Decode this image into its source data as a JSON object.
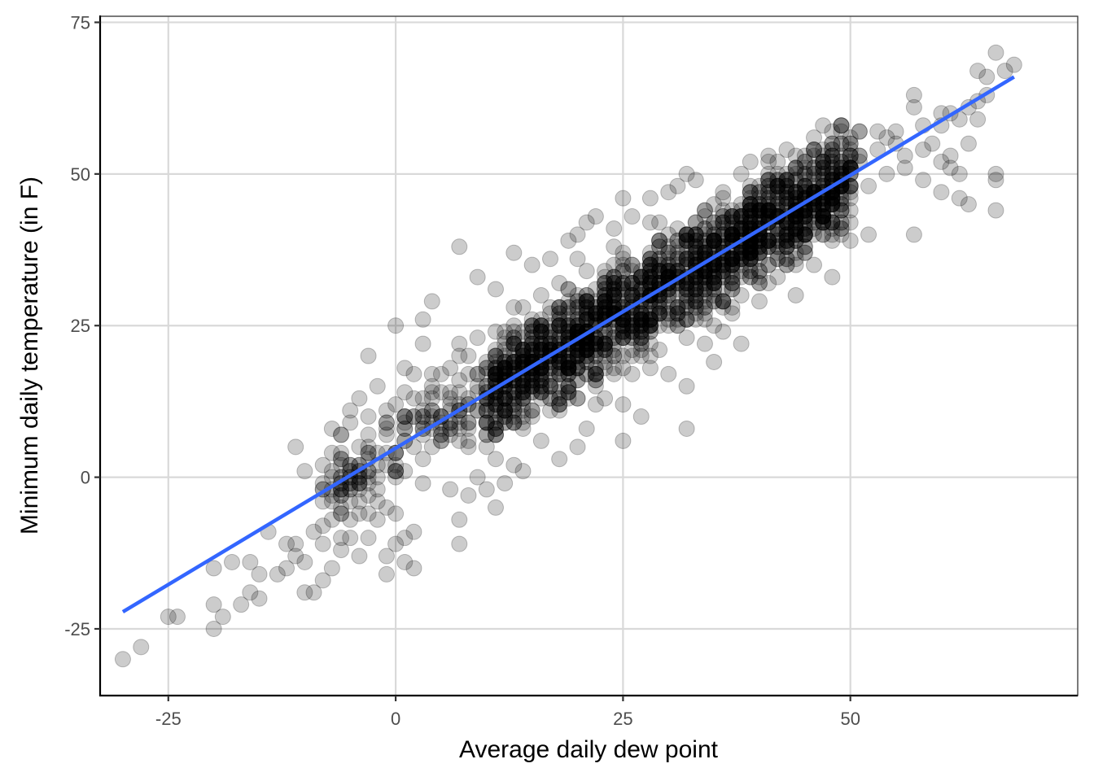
{
  "chart_data": {
    "type": "scatter",
    "title": "",
    "xlabel": "Average daily dew point",
    "ylabel": "Minimum daily temperature (in F)",
    "xlim": [
      -32.5,
      75
    ],
    "ylim": [
      -36,
      76
    ],
    "x_ticks": [
      -25,
      0,
      25,
      50
    ],
    "x_tick_labels": [
      "-25",
      "0",
      "25",
      "50"
    ],
    "y_ticks": [
      -25,
      0,
      25,
      50,
      75
    ],
    "y_tick_labels": [
      "-25",
      "0",
      "25",
      "50",
      "75"
    ],
    "grid": true,
    "legend": "none",
    "point_style": {
      "color": "#000000",
      "alpha": 0.2,
      "radius": 9.5
    },
    "trend_line": {
      "type": "linear regression",
      "color": "#3366FF",
      "x": [
        -30,
        68
      ],
      "y": [
        -22.2,
        66.0
      ],
      "slope": 0.9,
      "intercept": 4.8
    },
    "bulk_distribution": {
      "description": "dense cluster of integer-valued observations along the trend line",
      "x_range": [
        -8,
        66
      ],
      "residual_sd": 5,
      "density_peak_x": [
        20,
        40
      ]
    },
    "points": [
      [
        -30,
        -30
      ],
      [
        -28,
        -28
      ],
      [
        -25,
        -23
      ],
      [
        -24,
        -23
      ],
      [
        -20,
        -21
      ],
      [
        -20,
        -25
      ],
      [
        -19,
        -23
      ],
      [
        -20,
        -15
      ],
      [
        -18,
        -14
      ],
      [
        -17,
        -21
      ],
      [
        -16,
        -19
      ],
      [
        -16,
        -14
      ],
      [
        -15,
        -20
      ],
      [
        -15,
        -16
      ],
      [
        -14,
        -9
      ],
      [
        -13,
        -16
      ],
      [
        -12,
        -15
      ],
      [
        -12,
        -11
      ],
      [
        -11,
        -11
      ],
      [
        -11,
        -13
      ],
      [
        -11,
        5
      ],
      [
        -10,
        -14
      ],
      [
        -10,
        -19
      ],
      [
        -9,
        -19
      ],
      [
        -10,
        1
      ],
      [
        -9,
        -9
      ],
      [
        -8,
        -17
      ],
      [
        -8,
        -11
      ],
      [
        -7,
        -15
      ],
      [
        -6,
        -6
      ],
      [
        -6,
        -10
      ],
      [
        -6,
        -12
      ],
      [
        -5,
        -10
      ],
      [
        -4,
        -13
      ],
      [
        -5,
        9
      ],
      [
        -4,
        -2
      ],
      [
        -3,
        -3
      ],
      [
        -3,
        -10
      ],
      [
        -2,
        -2
      ],
      [
        -2,
        -7
      ],
      [
        -1,
        -13
      ],
      [
        -1,
        -16
      ],
      [
        0,
        -11
      ],
      [
        0,
        -6
      ],
      [
        1,
        -10
      ],
      [
        1,
        -14
      ],
      [
        2,
        -9
      ],
      [
        2,
        -15
      ],
      [
        -7,
        4
      ],
      [
        -6,
        3
      ],
      [
        -4,
        13
      ],
      [
        -3,
        20
      ],
      [
        -2,
        15
      ],
      [
        -1,
        9
      ],
      [
        0,
        25
      ],
      [
        1,
        18
      ],
      [
        1,
        14
      ],
      [
        2,
        10
      ],
      [
        3,
        22
      ],
      [
        3,
        26
      ],
      [
        4,
        29
      ],
      [
        5,
        17
      ],
      [
        6,
        -2
      ],
      [
        7,
        -7
      ],
      [
        7,
        -11
      ],
      [
        8,
        -3
      ],
      [
        9,
        0
      ],
      [
        10,
        -2
      ],
      [
        11,
        -5
      ],
      [
        12,
        -1
      ],
      [
        13,
        2
      ],
      [
        14,
        1
      ],
      [
        7,
        38
      ],
      [
        9,
        33
      ],
      [
        11,
        31
      ],
      [
        13,
        37
      ],
      [
        15,
        35
      ],
      [
        17,
        36
      ],
      [
        19,
        39
      ],
      [
        20,
        40
      ],
      [
        21,
        42
      ],
      [
        22,
        43
      ],
      [
        24,
        41
      ],
      [
        25,
        46
      ],
      [
        26,
        43
      ],
      [
        28,
        46
      ],
      [
        30,
        47
      ],
      [
        31,
        48
      ],
      [
        32,
        50
      ],
      [
        33,
        49
      ],
      [
        34,
        44
      ],
      [
        36,
        47
      ],
      [
        38,
        50
      ],
      [
        39,
        52
      ],
      [
        41,
        53
      ],
      [
        42,
        52
      ],
      [
        44,
        53
      ],
      [
        46,
        56
      ],
      [
        47,
        58
      ],
      [
        49,
        58
      ],
      [
        51,
        57
      ],
      [
        53,
        57
      ],
      [
        55,
        57
      ],
      [
        57,
        63
      ],
      [
        57,
        61
      ],
      [
        58,
        58
      ],
      [
        60,
        58
      ],
      [
        61,
        60
      ],
      [
        63,
        61
      ],
      [
        64,
        67
      ],
      [
        65,
        66
      ],
      [
        66,
        70
      ],
      [
        67,
        67
      ],
      [
        68,
        68
      ],
      [
        64,
        62
      ],
      [
        65,
        63
      ],
      [
        18,
        3
      ],
      [
        20,
        5
      ],
      [
        21,
        8
      ],
      [
        22,
        12
      ],
      [
        23,
        13
      ],
      [
        25,
        6
      ],
      [
        25,
        12
      ],
      [
        27,
        10
      ],
      [
        28,
        18
      ],
      [
        30,
        17
      ],
      [
        32,
        8
      ],
      [
        32,
        15
      ],
      [
        34,
        22
      ],
      [
        35,
        19
      ],
      [
        36,
        24
      ],
      [
        38,
        22
      ],
      [
        40,
        29
      ],
      [
        41,
        32
      ],
      [
        44,
        30
      ],
      [
        46,
        35
      ],
      [
        48,
        33
      ],
      [
        49,
        40
      ],
      [
        52,
        40
      ],
      [
        57,
        40
      ],
      [
        58,
        49
      ],
      [
        60,
        47
      ],
      [
        62,
        46
      ],
      [
        63,
        45
      ],
      [
        66,
        44
      ],
      [
        66,
        49
      ],
      [
        66,
        50
      ],
      [
        61,
        51
      ],
      [
        62,
        50
      ],
      [
        56,
        51
      ],
      [
        54,
        50
      ],
      [
        52,
        48
      ],
      [
        50,
        47
      ],
      [
        59,
        55
      ],
      [
        58,
        54
      ],
      [
        56,
        53
      ],
      [
        55,
        55
      ],
      [
        54,
        56
      ],
      [
        53,
        54
      ],
      [
        60,
        52
      ],
      [
        61,
        53
      ],
      [
        63,
        55
      ],
      [
        64,
        59
      ],
      [
        62,
        59
      ],
      [
        60,
        60
      ]
    ]
  }
}
